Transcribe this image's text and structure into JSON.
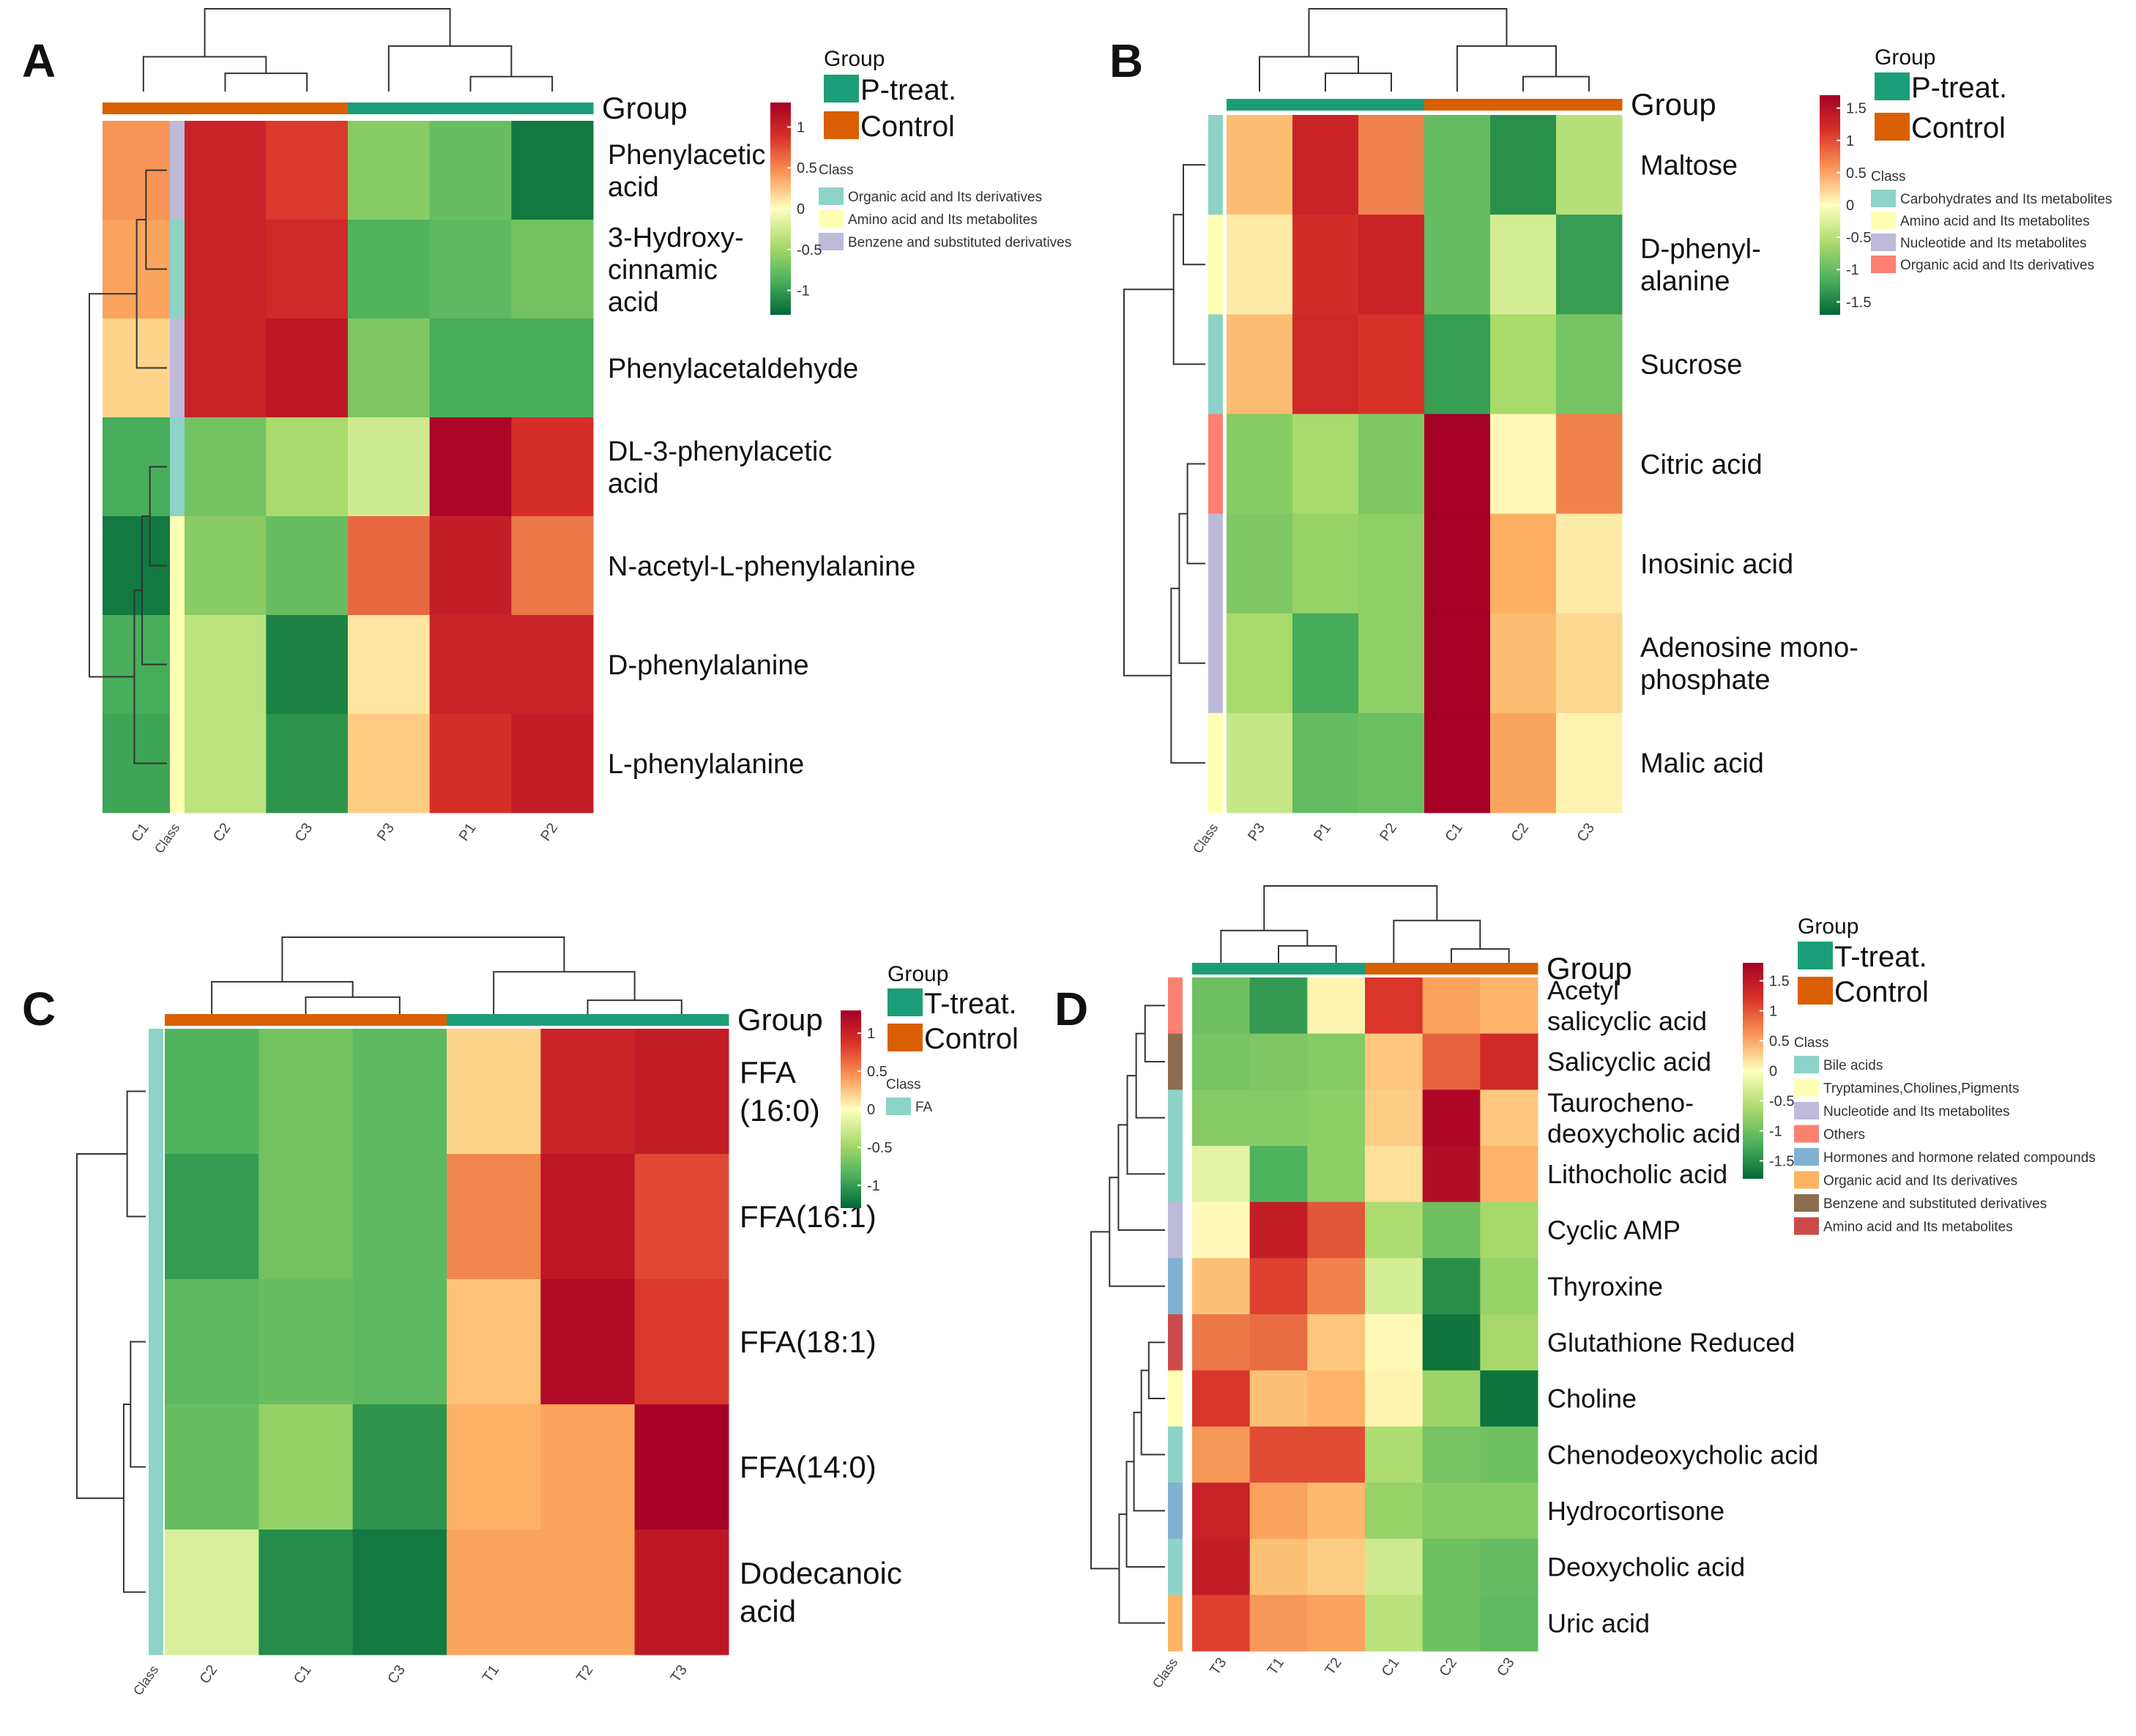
{
  "chart_data": [
    {
      "panel_label": "A",
      "type": "heatmap",
      "group_title": "Group",
      "class_title": "Class",
      "columns": [
        "C1",
        "C2",
        "C3",
        "P3",
        "P1",
        "P2"
      ],
      "column_groups": [
        "Control",
        "Control",
        "Control",
        "P-treat.",
        "P-treat.",
        "P-treat."
      ],
      "rows": [
        {
          "label": [
            "Phenylacetic",
            "acid"
          ],
          "class": "Benzene and substituted derivatives",
          "values": [
            0.55,
            1.0,
            0.85,
            -0.6,
            -0.75,
            -1.2
          ]
        },
        {
          "label": [
            "3-Hydroxy-",
            "cinnamic",
            "acid"
          ],
          "class": "Organic acid and Its derivatives",
          "values": [
            0.5,
            1.0,
            0.95,
            -0.85,
            -0.8,
            -0.7
          ]
        },
        {
          "label": [
            "Phenylacetaldehyde"
          ],
          "class": "Benzene and substituted derivatives",
          "values": [
            0.25,
            1.0,
            1.1,
            -0.65,
            -0.9,
            -0.9
          ]
        },
        {
          "label": [
            "DL-3-phenylacetic",
            "acid"
          ],
          "class": "Organic acid and Its derivatives",
          "values": [
            -0.9,
            -0.7,
            -0.45,
            -0.25,
            1.25,
            0.9
          ]
        },
        {
          "label": [
            "N-acetyl-L-phenylalanine"
          ],
          "class": "Amino acid and Its metabolites",
          "values": [
            -1.2,
            -0.6,
            -0.75,
            0.7,
            1.05,
            0.65
          ]
        },
        {
          "label": [
            "D-phenylalanine"
          ],
          "class": "Amino acid and Its metabolites",
          "values": [
            -0.9,
            -0.35,
            -1.15,
            0.15,
            1.0,
            1.0
          ]
        },
        {
          "label": [
            "L-phenylalanine"
          ],
          "class": "Amino acid and Its metabolites",
          "values": [
            -0.95,
            -0.35,
            -1.05,
            0.3,
            0.9,
            1.05
          ]
        }
      ],
      "legend_groups": [
        {
          "name": "P-treat.",
          "color": "#1b9e77"
        },
        {
          "name": "Control",
          "color": "#d95f02"
        }
      ],
      "legend_classes": [
        {
          "name": "Organic acid and Its derivatives",
          "color": "#8dd3c7"
        },
        {
          "name": "Amino acid and Its metabolites",
          "color": "#ffffb3"
        },
        {
          "name": "Benzene and substituted derivatives",
          "color": "#bebada"
        }
      ],
      "scale_ticks": [
        "1",
        "0.5",
        "0",
        "-0.5",
        "-1"
      ],
      "scale_range": [
        -1.3,
        1.3
      ]
    },
    {
      "panel_label": "B",
      "type": "heatmap",
      "group_title": "Group",
      "class_title": "Class",
      "columns": [
        "P3",
        "P1",
        "P2",
        "C1",
        "C2",
        "C3"
      ],
      "column_groups": [
        "P-treat.",
        "P-treat.",
        "P-treat.",
        "Control",
        "Control",
        "Control"
      ],
      "rows": [
        {
          "label": [
            "Maltose"
          ],
          "class": "Carbohydrates and Its metabolites",
          "values": [
            0.5,
            1.3,
            0.8,
            -1.0,
            -1.4,
            -0.5
          ]
        },
        {
          "label": [
            "D-phenyl-",
            "alanine"
          ],
          "class": "Amino acid and Its metabolites",
          "values": [
            0.15,
            1.2,
            1.3,
            -1.0,
            -0.3,
            -1.3
          ]
        },
        {
          "label": [
            "Sucrose"
          ],
          "class": "Carbohydrates and Its metabolites",
          "values": [
            0.5,
            1.25,
            1.15,
            -1.3,
            -0.6,
            -0.9
          ]
        },
        {
          "label": [
            "Citric acid"
          ],
          "class": "Organic acid and Its derivatives",
          "values": [
            -0.8,
            -0.6,
            -0.85,
            1.75,
            0.05,
            0.8
          ]
        },
        {
          "label": [
            "Inosinic acid"
          ],
          "class": "Nucleotide and Its metabolites",
          "values": [
            -0.85,
            -0.7,
            -0.75,
            1.75,
            0.6,
            0.15
          ]
        },
        {
          "label": [
            "Adenosine mono-",
            "phosphate"
          ],
          "class": "Nucleotide and Its metabolites",
          "values": [
            -0.6,
            -1.2,
            -0.75,
            1.75,
            0.5,
            0.3
          ]
        },
        {
          "label": [
            "Malic acid"
          ],
          "class": "Amino acid and Its metabolites",
          "values": [
            -0.4,
            -1.0,
            -0.95,
            1.75,
            0.65,
            0.1
          ]
        }
      ],
      "legend_groups": [
        {
          "name": "P-treat.",
          "color": "#1b9e77"
        },
        {
          "name": "Control",
          "color": "#d95f02"
        }
      ],
      "legend_classes": [
        {
          "name": "Carbohydrates and Its metabolites",
          "color": "#8dd3c7"
        },
        {
          "name": "Amino acid and Its metabolites",
          "color": "#ffffb3"
        },
        {
          "name": "Nucleotide and Its metabolites",
          "color": "#bebada"
        },
        {
          "name": "Organic acid and Its derivatives",
          "color": "#fb8072"
        }
      ],
      "scale_ticks": [
        "1.5",
        "1",
        "0.5",
        "0",
        "-0.5",
        "-1",
        "-1.5"
      ],
      "scale_range": [
        -1.7,
        1.7
      ]
    },
    {
      "panel_label": "C",
      "type": "heatmap",
      "group_title": "Group",
      "class_title": "Class",
      "columns": [
        "C2",
        "C1",
        "C3",
        "T1",
        "T2",
        "T3"
      ],
      "column_groups": [
        "Control",
        "Control",
        "Control",
        "T-treat.",
        "T-treat.",
        "T-treat."
      ],
      "rows": [
        {
          "label": [
            "FFA",
            "(16:0)"
          ],
          "class": "FA",
          "values": [
            -0.85,
            -0.7,
            -0.8,
            0.25,
            1.0,
            1.05
          ]
        },
        {
          "label": [
            "FFA(16:1)"
          ],
          "class": "FA",
          "values": [
            -1.0,
            -0.7,
            -0.8,
            0.6,
            1.1,
            0.8
          ]
        },
        {
          "label": [
            "FFA(18:1)"
          ],
          "class": "FA",
          "values": [
            -0.8,
            -0.75,
            -0.8,
            0.35,
            1.2,
            0.85
          ]
        },
        {
          "label": [
            "FFA(14:0)"
          ],
          "class": "FA",
          "values": [
            -0.75,
            -0.55,
            -1.05,
            0.45,
            0.5,
            1.3
          ]
        },
        {
          "label": [
            "Dodecanoic",
            "acid"
          ],
          "class": "FA",
          "values": [
            -0.2,
            -1.1,
            -1.2,
            0.5,
            0.5,
            1.1
          ]
        }
      ],
      "legend_groups": [
        {
          "name": "T-treat.",
          "color": "#1b9e77"
        },
        {
          "name": "Control",
          "color": "#d95f02"
        }
      ],
      "legend_classes": [
        {
          "name": "FA",
          "color": "#8dd3c7"
        }
      ],
      "scale_ticks": [
        "1",
        "0.5",
        "0",
        "-0.5",
        "-1"
      ],
      "scale_range": [
        -1.3,
        1.3
      ]
    },
    {
      "panel_label": "D",
      "type": "heatmap",
      "group_title": "Group",
      "class_title": "Class",
      "columns": [
        "T3",
        "T1",
        "T2",
        "C1",
        "C2",
        "C3"
      ],
      "column_groups": [
        "T-treat.",
        "T-treat.",
        "T-treat.",
        "Control",
        "Control",
        "Control"
      ],
      "rows": [
        {
          "label": [
            "Acetyl",
            "salicyclic acid"
          ],
          "class": "Others",
          "values": [
            -1.0,
            -1.4,
            0.1,
            1.2,
            0.7,
            0.6
          ]
        },
        {
          "label": [
            "Salicyclic acid"
          ],
          "class": "Benzene and substituted derivatives",
          "values": [
            -0.95,
            -0.9,
            -0.85,
            0.45,
            1.0,
            1.3
          ]
        },
        {
          "label": [
            "Taurocheno-",
            "deoxycholic acid"
          ],
          "class": "Bile acids",
          "values": [
            -0.85,
            -0.85,
            -0.8,
            0.4,
            1.7,
            0.45
          ]
        },
        {
          "label": [
            "Lithocholic acid"
          ],
          "class": "Bile acids",
          "values": [
            -0.2,
            -1.2,
            -0.8,
            0.25,
            1.65,
            0.6
          ]
        },
        {
          "label": [
            "Cyclic AMP"
          ],
          "class": "Nucleotide and Its metabolites",
          "values": [
            0.05,
            1.45,
            1.05,
            -0.6,
            -1.0,
            -0.65
          ]
        },
        {
          "label": [
            "Thyroxine"
          ],
          "class": "Hormones and hormone related compounds",
          "values": [
            0.5,
            1.15,
            0.85,
            -0.3,
            -1.5,
            -0.75
          ]
        },
        {
          "label": [
            "Glutathione Reduced"
          ],
          "class": "Amino acid and Its metabolites",
          "values": [
            0.9,
            0.95,
            0.45,
            0.05,
            -1.7,
            -0.65
          ]
        },
        {
          "label": [
            "Choline"
          ],
          "class": "Tryptamines,Cholines,Pigments",
          "values": [
            1.2,
            0.5,
            0.6,
            0.1,
            -0.7,
            -1.7
          ]
        },
        {
          "label": [
            "Chenodeoxycholic acid"
          ],
          "class": "Bile acids",
          "values": [
            0.75,
            1.1,
            1.1,
            -0.6,
            -0.95,
            -1.0
          ]
        },
        {
          "label": [
            "Hydrocortisone"
          ],
          "class": "Hormones and hormone related compounds",
          "values": [
            1.4,
            0.7,
            0.55,
            -0.75,
            -0.85,
            -0.85
          ]
        },
        {
          "label": [
            "Deoxycholic acid"
          ],
          "class": "Bile acids",
          "values": [
            1.45,
            0.5,
            0.4,
            -0.35,
            -1.0,
            -1.05
          ]
        },
        {
          "label": [
            "Uric acid"
          ],
          "class": "Organic acid and Its derivatives",
          "values": [
            1.15,
            0.75,
            0.7,
            -0.5,
            -1.0,
            -1.1
          ]
        }
      ],
      "legend_groups": [
        {
          "name": "T-treat.",
          "color": "#1b9e77"
        },
        {
          "name": "Control",
          "color": "#d95f02"
        }
      ],
      "legend_classes": [
        {
          "name": "Bile acids",
          "color": "#8dd3c7"
        },
        {
          "name": "Tryptamines,Cholines,Pigments",
          "color": "#ffffb3"
        },
        {
          "name": "Nucleotide and Its metabolites",
          "color": "#bebada"
        },
        {
          "name": "Others",
          "color": "#fb8072"
        },
        {
          "name": "Hormones and hormone related compounds",
          "color": "#80b1d3"
        },
        {
          "name": "Organic acid and Its derivatives",
          "color": "#fdb462"
        },
        {
          "name": "Benzene and substituted derivatives",
          "color": "#8c6d4f"
        },
        {
          "name": "Amino acid and Its metabolites",
          "color": "#cd4a4a"
        }
      ],
      "scale_ticks": [
        "1.5",
        "1",
        "0.5",
        "0",
        "-0.5",
        "-1",
        "-1.5"
      ],
      "scale_range": [
        -1.8,
        1.8
      ]
    }
  ]
}
